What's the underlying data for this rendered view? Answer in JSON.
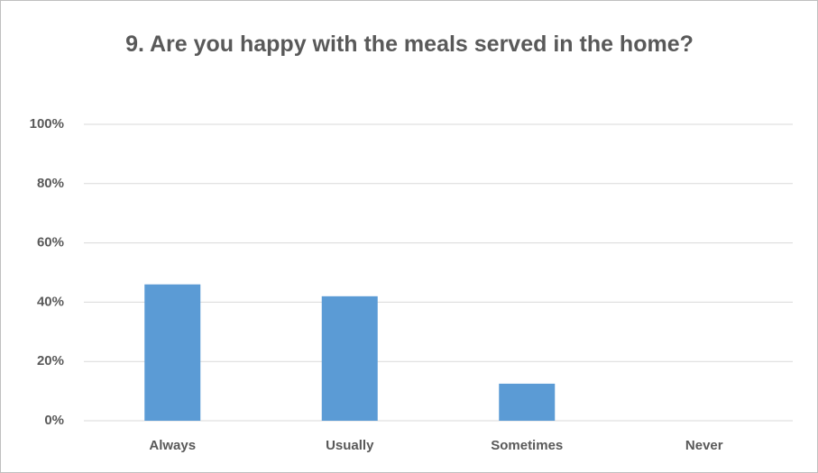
{
  "chart_data": {
    "type": "bar",
    "title": "9. Are you happy with the meals served in the home?",
    "categories": [
      "Always",
      "Usually",
      "Sometimes",
      "Never"
    ],
    "values": [
      46,
      42,
      12.5,
      0
    ],
    "color": "#5b9bd5",
    "ylim": [
      0,
      100
    ],
    "yticks": [
      {
        "value": 0,
        "label": "0%"
      },
      {
        "value": 20,
        "label": "20%"
      },
      {
        "value": 40,
        "label": "40%"
      },
      {
        "value": 60,
        "label": "60%"
      },
      {
        "value": 80,
        "label": "80%"
      },
      {
        "value": 100,
        "label": "100%"
      }
    ],
    "grid": true
  }
}
